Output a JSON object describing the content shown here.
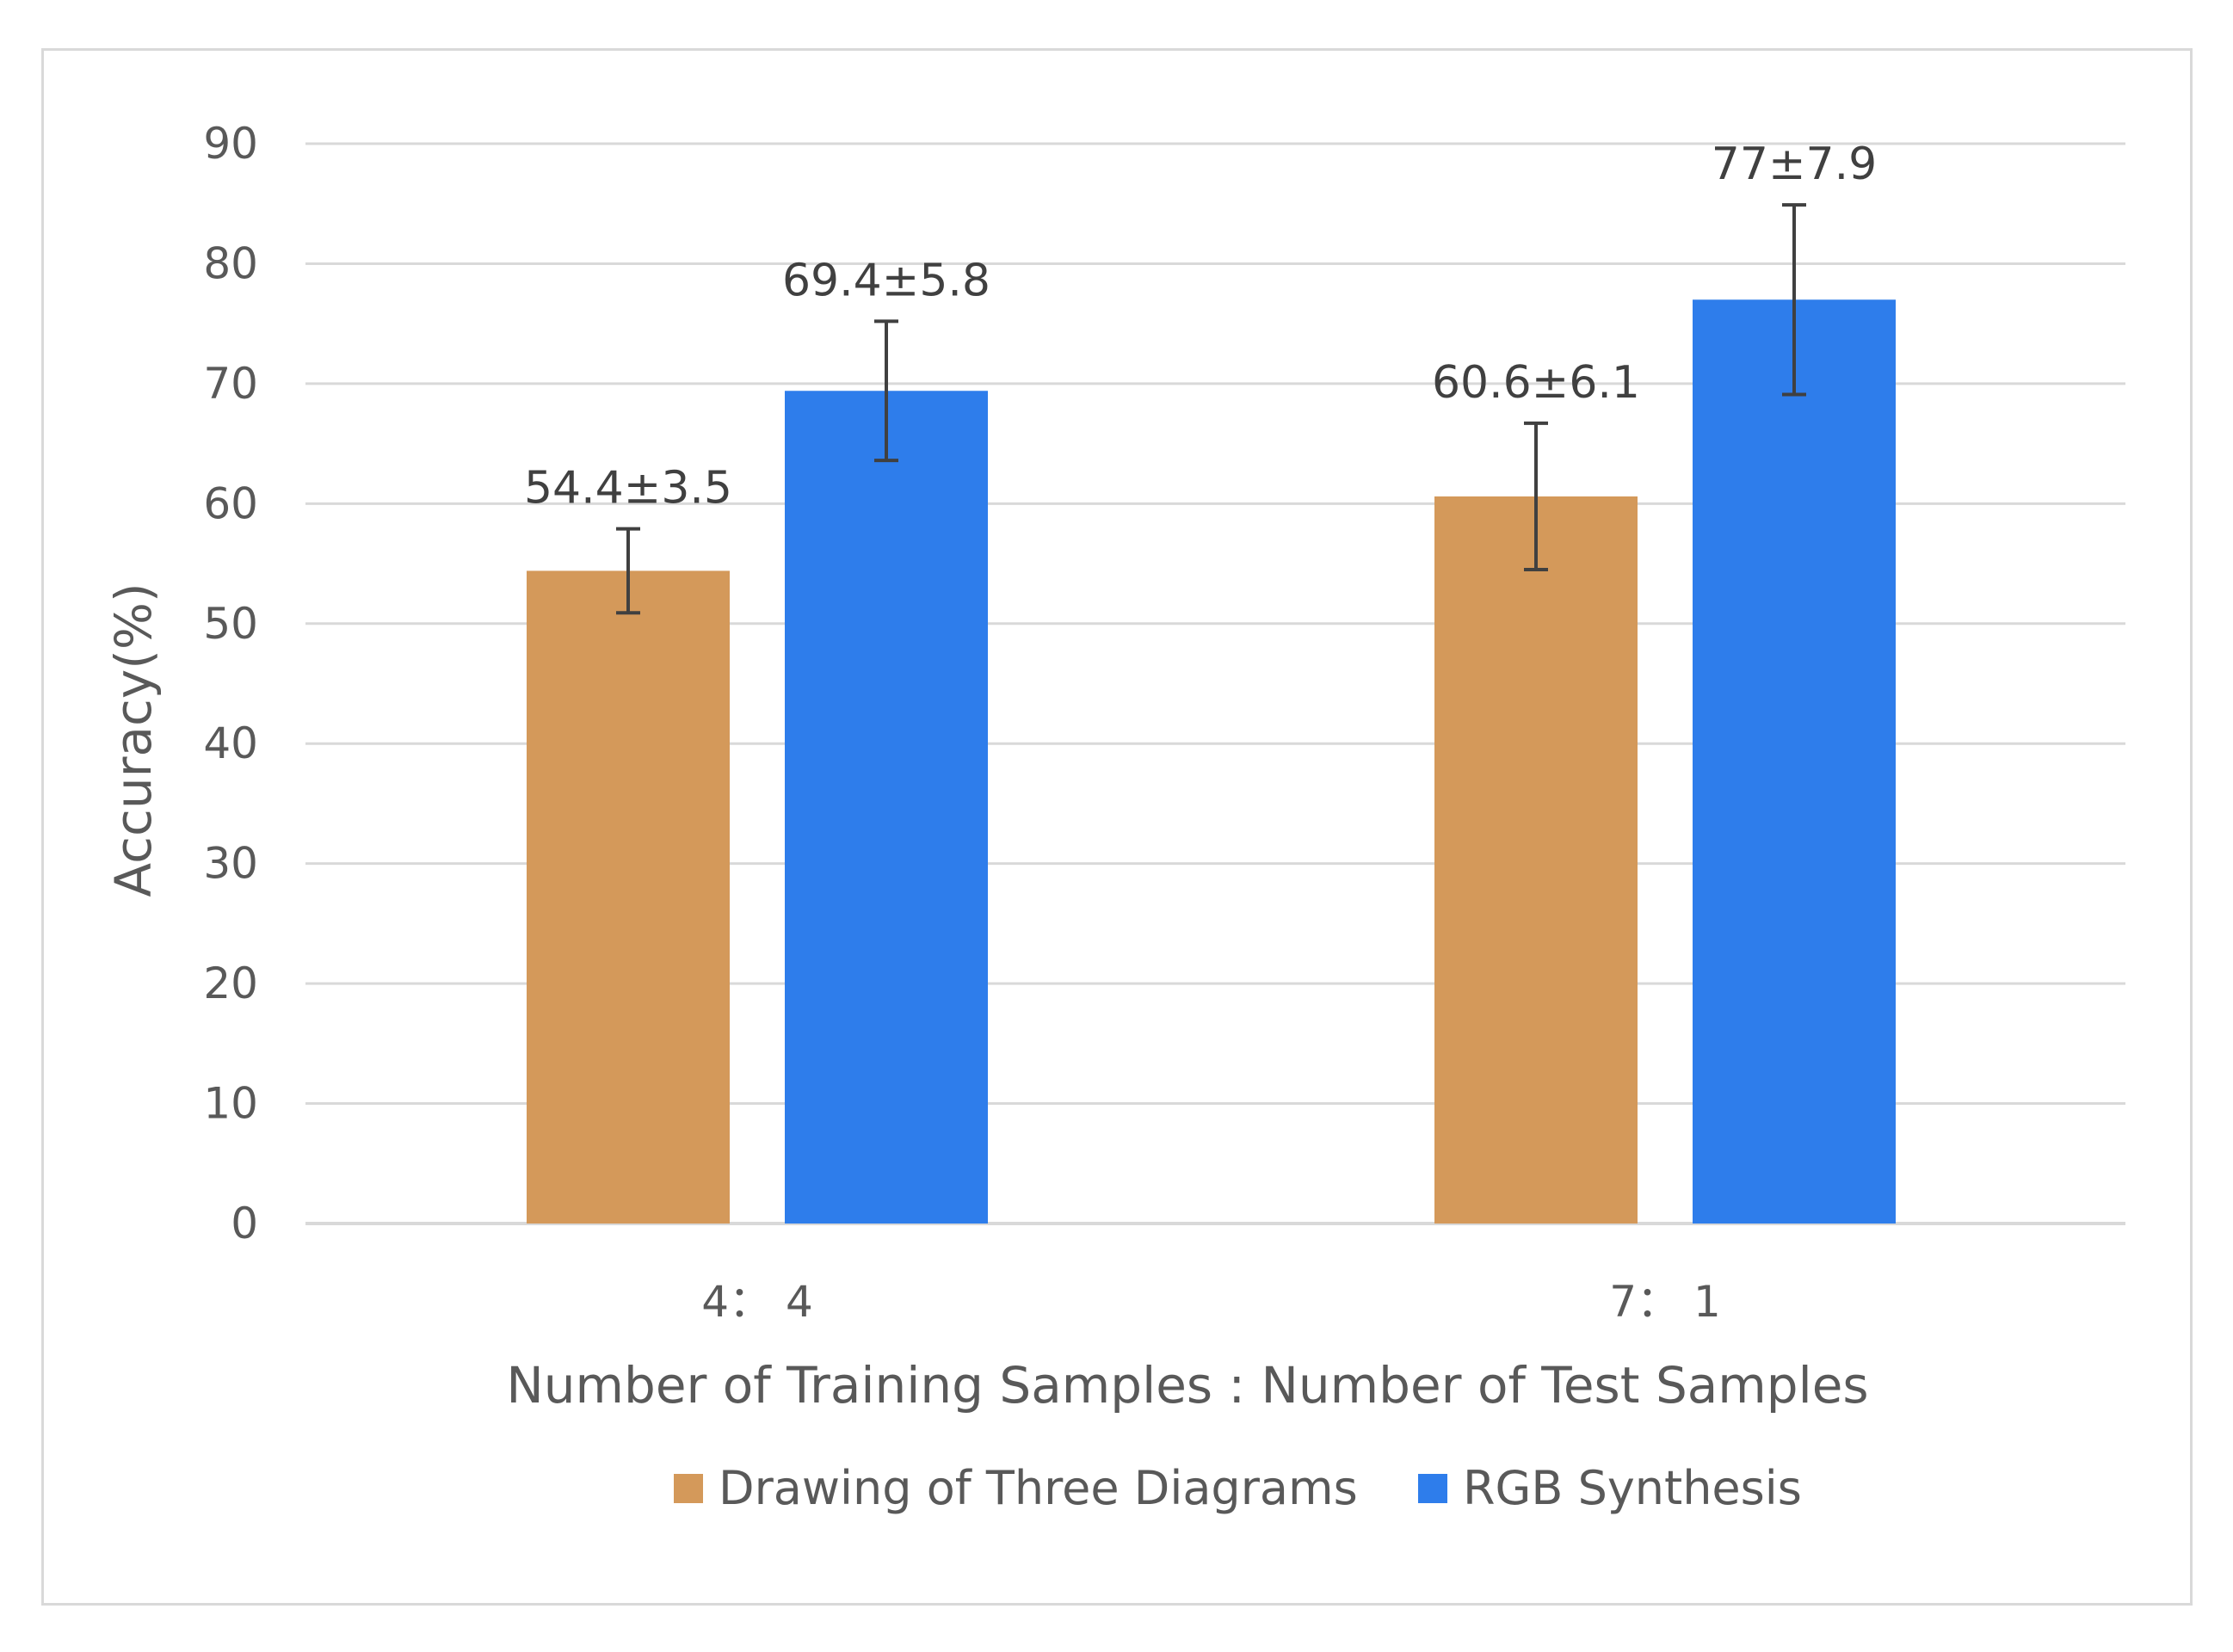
{
  "chart_data": {
    "type": "bar",
    "title": "",
    "xlabel": "Number of Training Samples : Number of Test Samples",
    "ylabel": "Accuracy(%)",
    "ylim": [
      0,
      90
    ],
    "yticks": [
      "0",
      "10",
      "20",
      "30",
      "40",
      "50",
      "60",
      "70",
      "80",
      "90"
    ],
    "grid": true,
    "legend_position": "bottom",
    "categories": [
      "4： 4",
      "7： 1"
    ],
    "series": [
      {
        "name": "Drawing of Three Diagrams",
        "color": "#d4995a",
        "values": [
          54.4,
          60.6
        ],
        "errors": [
          3.5,
          6.1
        ],
        "labels": [
          "54.4±3.5",
          "60.6±6.1"
        ]
      },
      {
        "name": "RGB Synthesis",
        "color": "#2e7deb",
        "values": [
          69.4,
          77
        ],
        "errors": [
          5.8,
          7.9
        ],
        "labels": [
          "69.4±5.8",
          "77±7.9"
        ]
      }
    ]
  }
}
